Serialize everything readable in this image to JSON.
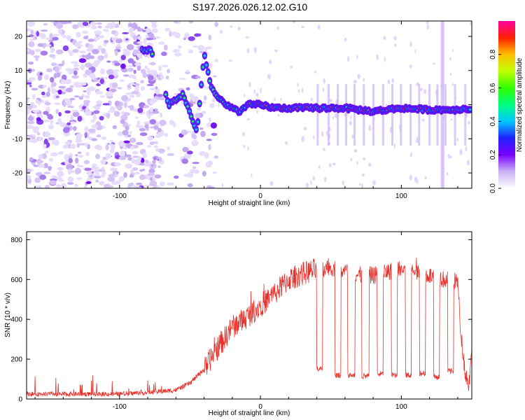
{
  "title": "S197.2026.026.12.02.G10",
  "colors": {
    "snr_line": "#e8302a",
    "spectrogram_low": "#d9c8f5",
    "spectrogram_mid": "#7a1ff0",
    "spectrogram_high": "#e0281e"
  },
  "chart_data": [
    {
      "type": "heatmap",
      "name": "spectrogram",
      "xlabel": "Height of straight line (km)",
      "ylabel": "Frequency (Hz)",
      "xlim": [
        -166,
        150
      ],
      "ylim": [
        -24.5,
        24.5
      ],
      "xticks": [
        -100,
        0,
        100
      ],
      "yticks": [
        -20,
        -10,
        0,
        10,
        20
      ],
      "xtick_labels": [
        "-100",
        "0",
        "100"
      ],
      "ytick_labels": [
        "-20",
        "-10",
        "0",
        "10",
        "20"
      ],
      "colorbar": {
        "label": "Normalized spectral amplitude",
        "range": [
          0,
          1
        ],
        "ticks": [
          0.0,
          0.2,
          0.4,
          0.6,
          0.8
        ],
        "tick_labels": [
          "0.0",
          "0.2",
          "0.4",
          "0.6",
          "0.8"
        ]
      },
      "ridge": [
        {
          "x": -82,
          "y": 16
        },
        {
          "x": -78,
          "y": 16
        },
        {
          "x": -65,
          "y": 0
        },
        {
          "x": -55,
          "y": 3
        },
        {
          "x": -45,
          "y": -8
        },
        {
          "x": -40,
          "y": 15
        },
        {
          "x": -35,
          "y": 5
        },
        {
          "x": -30,
          "y": 2
        },
        {
          "x": -25,
          "y": 0
        },
        {
          "x": -15,
          "y": -2
        },
        {
          "x": -8,
          "y": 0
        },
        {
          "x": 0,
          "y": 0
        },
        {
          "x": 10,
          "y": -1
        },
        {
          "x": 20,
          "y": -1
        },
        {
          "x": 40,
          "y": -1
        },
        {
          "x": 60,
          "y": -1
        },
        {
          "x": 80,
          "y": -2
        },
        {
          "x": 100,
          "y": -1
        },
        {
          "x": 120,
          "y": -1.5
        },
        {
          "x": 140,
          "y": -1.5
        },
        {
          "x": 150,
          "y": -1
        }
      ]
    },
    {
      "type": "line",
      "name": "snr",
      "xlabel": "Height of straight line (km)",
      "ylabel": "SNR (10 * v/v)",
      "xlim": [
        -166,
        150
      ],
      "ylim": [
        0,
        840
      ],
      "xticks": [
        -100,
        0,
        100
      ],
      "yticks": [
        0,
        200,
        400,
        600,
        800
      ],
      "xtick_labels": [
        "-100",
        "0",
        "100"
      ],
      "ytick_labels": [
        "0",
        "200",
        "400",
        "600",
        "800"
      ],
      "envelope": [
        {
          "x": -166,
          "y": 25
        },
        {
          "x": -100,
          "y": 25
        },
        {
          "x": -75,
          "y": 35
        },
        {
          "x": -60,
          "y": 45
        },
        {
          "x": -50,
          "y": 80
        },
        {
          "x": -40,
          "y": 150
        },
        {
          "x": -30,
          "y": 260
        },
        {
          "x": -20,
          "y": 360
        },
        {
          "x": -10,
          "y": 410
        },
        {
          "x": 0,
          "y": 470
        },
        {
          "x": 10,
          "y": 530
        },
        {
          "x": 20,
          "y": 600
        },
        {
          "x": 30,
          "y": 630
        },
        {
          "x": 40,
          "y": 650
        },
        {
          "x": 50,
          "y": 660
        },
        {
          "x": 60,
          "y": 640
        },
        {
          "x": 70,
          "y": 620
        },
        {
          "x": 80,
          "y": 620
        },
        {
          "x": 90,
          "y": 640
        },
        {
          "x": 100,
          "y": 650
        },
        {
          "x": 110,
          "y": 640
        },
        {
          "x": 120,
          "y": 620
        },
        {
          "x": 130,
          "y": 600
        },
        {
          "x": 140,
          "y": 590
        },
        {
          "x": 142,
          "y": 350
        },
        {
          "x": 145,
          "y": 150
        },
        {
          "x": 148,
          "y": 60
        },
        {
          "x": 150,
          "y": 280
        }
      ],
      "dropouts": [
        {
          "x0": 40,
          "x1": 44,
          "y": 150
        },
        {
          "x0": 53,
          "x1": 57,
          "y": 120
        },
        {
          "x0": 62,
          "x1": 67,
          "y": 120
        },
        {
          "x0": 72,
          "x1": 77,
          "y": 115
        },
        {
          "x0": 83,
          "x1": 87,
          "y": 125
        },
        {
          "x0": 93,
          "x1": 97,
          "y": 120
        },
        {
          "x0": 103,
          "x1": 107,
          "y": 120
        },
        {
          "x0": 113,
          "x1": 117,
          "y": 130
        },
        {
          "x0": 123,
          "x1": 127,
          "y": 110
        },
        {
          "x0": 133,
          "x1": 137,
          "y": 140
        }
      ]
    }
  ]
}
